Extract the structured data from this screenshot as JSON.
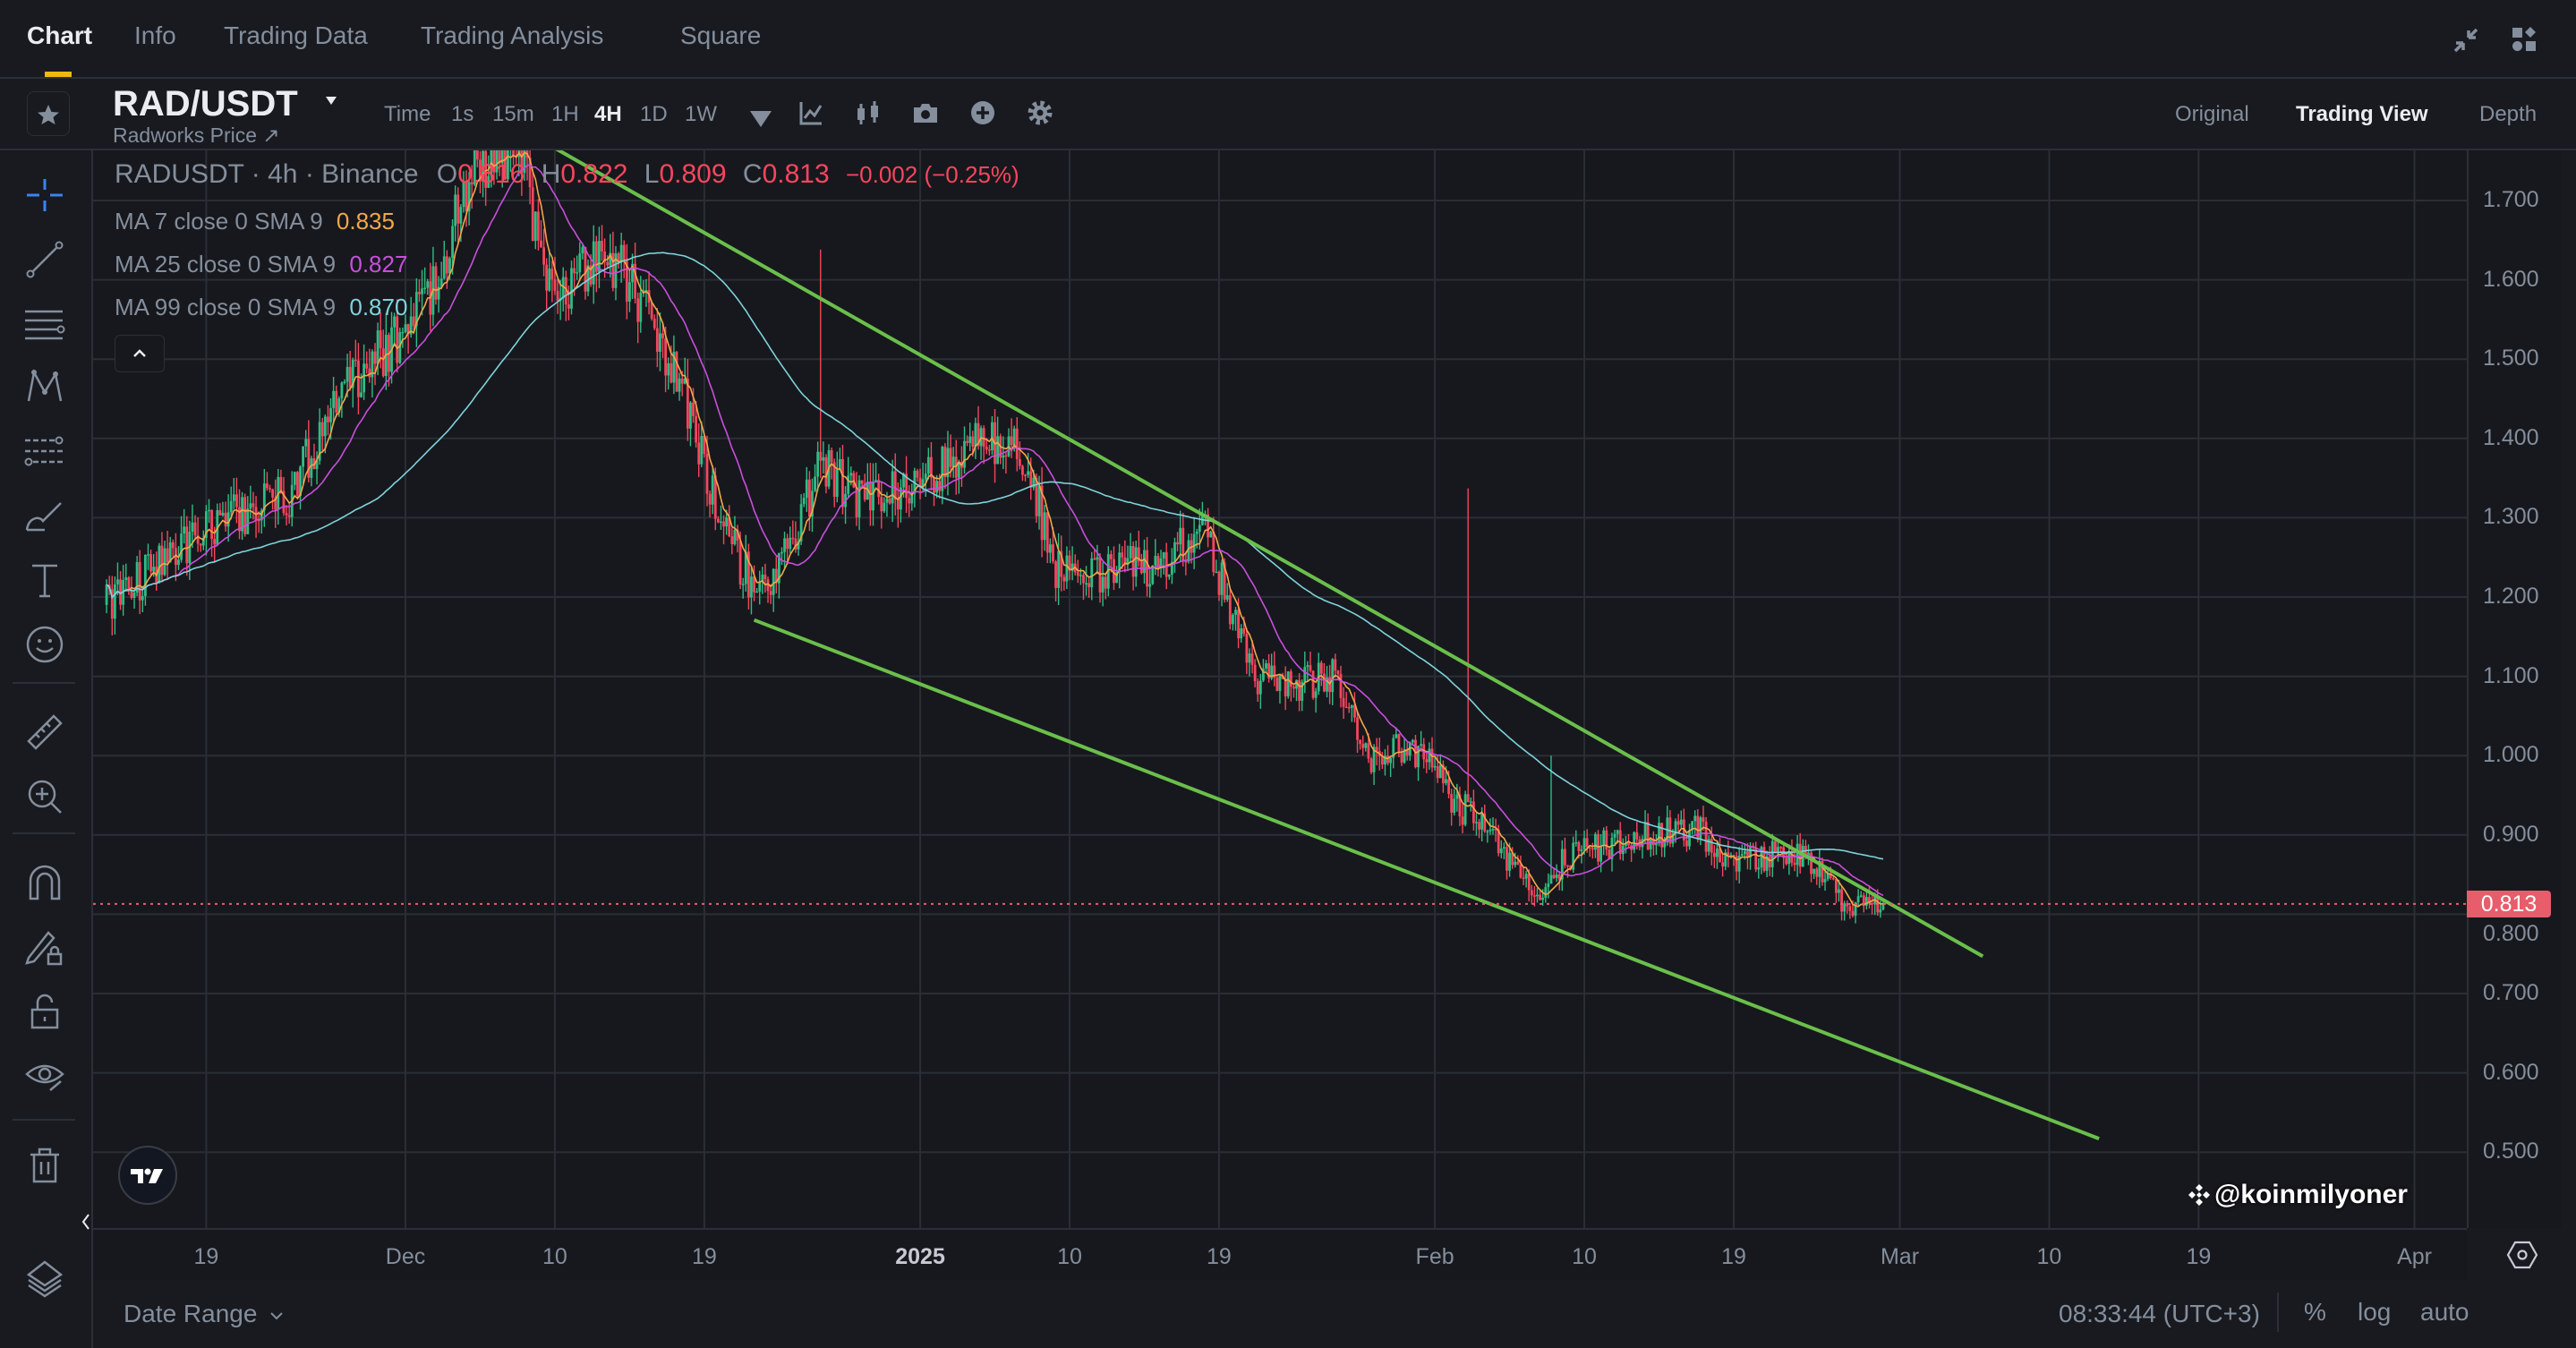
{
  "tabs": [
    {
      "label": "Chart",
      "active": true
    },
    {
      "label": "Info"
    },
    {
      "label": "Trading Data"
    },
    {
      "label": "Trading Analysis"
    },
    {
      "label": "Square"
    }
  ],
  "toolbar": {
    "symbol": "RAD/USDT",
    "subtitle": "Radworks Price ↗",
    "intervals": [
      {
        "label": "Time"
      },
      {
        "label": "1s"
      },
      {
        "label": "15m"
      },
      {
        "label": "1H"
      },
      {
        "label": "4H",
        "active": true
      },
      {
        "label": "1D"
      },
      {
        "label": "1W"
      }
    ],
    "icons": [
      "chevron-down-icon",
      "indicators-icon",
      "candle-type-icon",
      "camera-icon",
      "add-icon",
      "settings-icon"
    ],
    "views": [
      {
        "label": "Original"
      },
      {
        "label": "Trading View",
        "active": true
      },
      {
        "label": "Depth"
      }
    ],
    "window_icons": [
      "collapse-icon",
      "widgets-icon"
    ]
  },
  "left_tools": [
    "crosshair-icon",
    "trend-line-icon",
    "horizontal-lines-icon",
    "pattern-icon",
    "fib-icon",
    "brush-icon",
    "text-icon",
    "emoji-icon",
    "ruler-icon",
    "zoom-in-icon",
    "magnet-icon",
    "lock-drawing-icon",
    "unlock-icon",
    "eye-icon",
    "trash-icon",
    "layers-icon"
  ],
  "legend": {
    "title": "RADUSDT · 4h · Binance",
    "o_label": "O",
    "o": "0.816",
    "h_label": "H",
    "h": "0.822",
    "l_label": "L",
    "l": "0.809",
    "c_label": "C",
    "c": "0.813",
    "change": "−0.002 (−0.25%)",
    "ma": [
      {
        "label": "MA 7 close 0 SMA 9",
        "value": "0.835",
        "color": "#f0a84a"
      },
      {
        "label": "MA 25 close 0 SMA 9",
        "value": "0.827",
        "color": "#c84fdc"
      },
      {
        "label": "MA 99 close 0 SMA 9",
        "value": "0.870",
        "color": "#7dd3dc"
      }
    ]
  },
  "colors": {
    "up": "#2ebd85",
    "down": "#f6465d",
    "trendline": "#6abf4b",
    "last_price": "#e75d6b",
    "accent": "#f0b90b"
  },
  "chart_data": {
    "type": "candlestick",
    "symbol": "RADUSDT",
    "interval": "4h",
    "exchange": "Binance",
    "close_path": [
      [
        "2024-11-13",
        1.19
      ],
      [
        "2024-11-19",
        1.29
      ],
      [
        "2024-11-24",
        1.33
      ],
      [
        "2024-11-27",
        1.45
      ],
      [
        "2024-12-01",
        1.54
      ],
      [
        "2024-12-03",
        1.6
      ],
      [
        "2024-12-05",
        1.74
      ],
      [
        "2024-12-08",
        1.75
      ],
      [
        "2024-12-10",
        1.56
      ],
      [
        "2024-12-12",
        1.62
      ],
      [
        "2024-12-14",
        1.62
      ],
      [
        "2024-12-16",
        1.54
      ],
      [
        "2024-12-18",
        1.44
      ],
      [
        "2024-12-20",
        1.29
      ],
      [
        "2024-12-22",
        1.21
      ],
      [
        "2024-12-24",
        1.25
      ],
      [
        "2024-12-26",
        1.37
      ],
      [
        "2024-12-28",
        1.33
      ],
      [
        "2024-12-30",
        1.33
      ],
      [
        "2025-01-01",
        1.35
      ],
      [
        "2025-01-03",
        1.37
      ],
      [
        "2025-01-05",
        1.4
      ],
      [
        "2025-01-07",
        1.39
      ],
      [
        "2025-01-08",
        1.33
      ],
      [
        "2025-01-09",
        1.24
      ],
      [
        "2025-01-11",
        1.22
      ],
      [
        "2025-01-13",
        1.24
      ],
      [
        "2025-01-15",
        1.24
      ],
      [
        "2025-01-17",
        1.27
      ],
      [
        "2025-01-18",
        1.29
      ],
      [
        "2025-01-20",
        1.17
      ],
      [
        "2025-01-21",
        1.1
      ],
      [
        "2025-01-24",
        1.09
      ],
      [
        "2025-01-26",
        1.1
      ],
      [
        "2025-01-28",
        1.0
      ],
      [
        "2025-01-30",
        1.01
      ],
      [
        "2025-02-01",
        0.995
      ],
      [
        "2025-02-02",
        0.94
      ],
      [
        "2025-02-04",
        0.92
      ],
      [
        "2025-02-05",
        0.875
      ],
      [
        "2025-02-07",
        0.825
      ],
      [
        "2025-02-09",
        0.875
      ],
      [
        "2025-02-11",
        0.885
      ],
      [
        "2025-02-13",
        0.895
      ],
      [
        "2025-02-15",
        0.905
      ],
      [
        "2025-02-17",
        0.905
      ],
      [
        "2025-02-19",
        0.865
      ],
      [
        "2025-02-21",
        0.875
      ],
      [
        "2025-02-23",
        0.875
      ],
      [
        "2025-02-24",
        0.865
      ],
      [
        "2025-02-26",
        0.79
      ],
      [
        "2025-02-27",
        0.825
      ],
      [
        "2025-02-28",
        0.813
      ]
    ],
    "wicks": [
      [
        "2024-12-26",
        1.638
      ],
      [
        "2025-02-03",
        1.337
      ],
      [
        "2024-12-21",
        1.1
      ],
      [
        "2025-01-18",
        1.32
      ],
      [
        "2025-02-08",
        1.0
      ]
    ],
    "trendlines": [
      {
        "from": [
          "2024-12-10",
          1.766
        ],
        "to": [
          "2025-03-06",
          0.747
        ]
      },
      {
        "from": [
          "2024-12-22",
          1.171
        ],
        "to": [
          "2025-03-13",
          0.517
        ]
      }
    ],
    "y_ticks": [
      "1.700",
      "1.600",
      "1.500",
      "1.400",
      "1.300",
      "1.200",
      "1.100",
      "1.000",
      "0.900",
      "0.800",
      "0.700",
      "0.600",
      "0.500"
    ],
    "y_range": [
      0.47,
      1.86
    ],
    "x_ticks": [
      [
        "2024-11-19",
        "19"
      ],
      [
        "2024-12-01",
        "Dec"
      ],
      [
        "2024-12-10",
        "10"
      ],
      [
        "2024-12-19",
        "19"
      ],
      [
        "2025-01-01",
        "2025"
      ],
      [
        "2025-01-10",
        "10"
      ],
      [
        "2025-01-19",
        "19"
      ],
      [
        "2025-02-01",
        "Feb"
      ],
      [
        "2025-02-10",
        "10"
      ],
      [
        "2025-02-19",
        "19"
      ],
      [
        "2025-03-01",
        "Mar"
      ],
      [
        "2025-03-10",
        "10"
      ],
      [
        "2025-03-19",
        "19"
      ],
      [
        "2025-04-01",
        "Apr"
      ]
    ],
    "last_price": "0.813",
    "moving_averages": [
      7,
      25,
      99
    ]
  },
  "bottom": {
    "date_range": "Date Range",
    "time": "08:33:44 (UTC+3)",
    "pct": "%",
    "log": "log",
    "auto": "auto",
    "watermark": "@koinmilyoner"
  }
}
